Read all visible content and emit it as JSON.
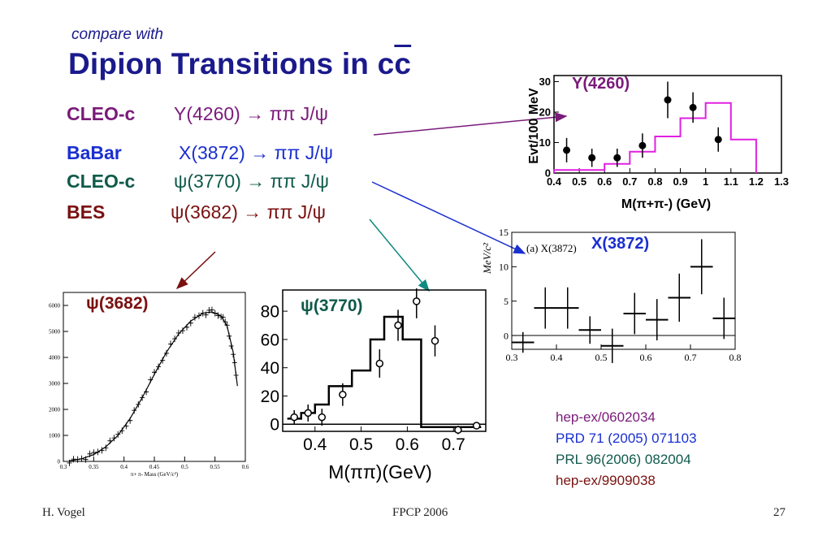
{
  "slide": {
    "subtitle": "compare with",
    "title_main": "Dipion Transitions in c",
    "title_bar": "c",
    "page_number": "27"
  },
  "colors": {
    "title": "#1a1a8c",
    "cleo_y": "#7a1a7a",
    "babar": "#1a2fd0",
    "cleo_psi": "#0f5a4a",
    "bes": "#7a1010",
    "magenta_hist": "#e020e0"
  },
  "transitions": [
    {
      "experiment": "CLEO-c",
      "process": "Y(4260) → ππ J/ψ",
      "color": "#7a1a7a"
    },
    {
      "experiment": "BaBar",
      "process": "X(3872) → ππ J/ψ",
      "color": "#1a2fd0"
    },
    {
      "experiment": "CLEO-c",
      "process": "ψ(3770) → ππ J/ψ",
      "color": "#0f5a4a"
    },
    {
      "experiment": "BES",
      "process": "ψ(3682) → ππ J/ψ",
      "color": "#7a1010"
    }
  ],
  "references": [
    {
      "text": "hep-ex/0602034",
      "color": "#7a1a7a"
    },
    {
      "text": "PRD 71 (2005) 071103",
      "color": "#1a2fd0"
    },
    {
      "text": "PRL 96(2006) 082004",
      "color": "#0f5a4a"
    },
    {
      "text": "hep-ex/9909038",
      "color": "#7a1010"
    }
  ],
  "footer": {
    "author": "H. Vogel",
    "conference": "FPCP 2006"
  },
  "chart_data": [
    {
      "type": "scatter",
      "label": "Y(4260)",
      "ylabel": "Evt/100 MeV",
      "xlabel": "M(π+π-) (GeV)",
      "xlim": [
        0.4,
        1.3
      ],
      "ylim": [
        0,
        32
      ],
      "xticks": [
        "0.4",
        "0.5",
        "0.6",
        "0.7",
        "0.8",
        "0.9",
        "1",
        "1.1",
        "1.2",
        "1.3"
      ],
      "yticks": [
        "0",
        "10",
        "20",
        "30"
      ],
      "points": [
        {
          "x": 0.45,
          "y": 7.5,
          "err": 4
        },
        {
          "x": 0.55,
          "y": 5,
          "err": 3
        },
        {
          "x": 0.65,
          "y": 5,
          "err": 3
        },
        {
          "x": 0.75,
          "y": 9,
          "err": 4
        },
        {
          "x": 0.85,
          "y": 24,
          "err": 6
        },
        {
          "x": 0.95,
          "y": 21.5,
          "err": 5
        },
        {
          "x": 1.05,
          "y": 11,
          "err": 4
        }
      ],
      "histogram": {
        "edges": [
          0.4,
          0.5,
          0.6,
          0.7,
          0.8,
          0.9,
          1.0,
          1.1,
          1.2
        ],
        "values": [
          1,
          1,
          3,
          7,
          12,
          18,
          23,
          11
        ]
      }
    },
    {
      "type": "scatter",
      "label": "X(3872)",
      "inner_label": "(a)  X(3872)",
      "ylabel": "MeV/c²",
      "xlim": [
        0.3,
        0.8
      ],
      "ylim": [
        -2,
        15
      ],
      "xticks": [
        "0.3",
        "0.4",
        "0.5",
        "0.6",
        "0.7",
        "0.8"
      ],
      "yticks": [
        "0",
        "5",
        "10",
        "15"
      ],
      "points": [
        {
          "x": 0.325,
          "y": -1,
          "xerr": 0.025,
          "err": 1.5
        },
        {
          "x": 0.375,
          "y": 4,
          "xerr": 0.025,
          "err": 3
        },
        {
          "x": 0.425,
          "y": 4,
          "xerr": 0.025,
          "err": 3
        },
        {
          "x": 0.475,
          "y": 0.8,
          "xerr": 0.025,
          "err": 2
        },
        {
          "x": 0.525,
          "y": -1.5,
          "xerr": 0.025,
          "err": 2.5
        },
        {
          "x": 0.575,
          "y": 3.2,
          "xerr": 0.025,
          "err": 3
        },
        {
          "x": 0.625,
          "y": 2.3,
          "xerr": 0.025,
          "err": 3
        },
        {
          "x": 0.675,
          "y": 5.5,
          "xerr": 0.025,
          "err": 3.5
        },
        {
          "x": 0.725,
          "y": 10,
          "xerr": 0.025,
          "err": 4
        },
        {
          "x": 0.775,
          "y": 2.5,
          "xerr": 0.025,
          "err": 3
        }
      ]
    },
    {
      "type": "scatter",
      "label": "ψ(3770)",
      "xlabel": "M(ππ)(GeV)",
      "xlim": [
        0.33,
        0.77
      ],
      "ylim": [
        -5,
        95
      ],
      "xticks": [
        "0.4",
        "0.5",
        "0.6",
        "0.7"
      ],
      "yticks": [
        "0",
        "20",
        "40",
        "60",
        "80"
      ],
      "points": [
        {
          "x": 0.355,
          "y": 5,
          "err": 5
        },
        {
          "x": 0.385,
          "y": 8,
          "err": 6
        },
        {
          "x": 0.415,
          "y": 5,
          "err": 6
        },
        {
          "x": 0.46,
          "y": 21,
          "err": 8
        },
        {
          "x": 0.54,
          "y": 43,
          "err": 10
        },
        {
          "x": 0.58,
          "y": 70,
          "err": 11
        },
        {
          "x": 0.62,
          "y": 87,
          "err": 12
        },
        {
          "x": 0.66,
          "y": 59,
          "err": 11
        },
        {
          "x": 0.71,
          "y": -4,
          "err": 3
        },
        {
          "x": 0.75,
          "y": -1,
          "err": 2
        }
      ],
      "histogram": {
        "edges": [
          0.34,
          0.37,
          0.4,
          0.43,
          0.48,
          0.52,
          0.55,
          0.59,
          0.63,
          0.67,
          0.76
        ],
        "values": [
          4,
          8,
          14,
          27,
          38,
          60,
          76,
          60,
          -2,
          -2
        ]
      }
    },
    {
      "type": "scatter",
      "label": "ψ(3682)",
      "xlabel": "π+ π- Mass (GeV/c²)",
      "xlim": [
        0.3,
        0.6
      ],
      "ylim": [
        0,
        6500
      ],
      "xticks": [
        "0.3",
        "0.35",
        "0.4",
        "0.45",
        "0.5",
        "0.55",
        "0.6"
      ],
      "yticks": [
        "0",
        "1000",
        "2000",
        "3000",
        "4000",
        "5000",
        "6000"
      ],
      "curve": [
        [
          0.31,
          20
        ],
        [
          0.33,
          100
        ],
        [
          0.35,
          260
        ],
        [
          0.37,
          560
        ],
        [
          0.39,
          1000
        ],
        [
          0.41,
          1650
        ],
        [
          0.43,
          2450
        ],
        [
          0.45,
          3350
        ],
        [
          0.47,
          4200
        ],
        [
          0.49,
          4900
        ],
        [
          0.51,
          5400
        ],
        [
          0.53,
          5700
        ],
        [
          0.545,
          5750
        ],
        [
          0.56,
          5600
        ],
        [
          0.57,
          5200
        ],
        [
          0.58,
          4200
        ],
        [
          0.587,
          2900
        ]
      ]
    }
  ]
}
